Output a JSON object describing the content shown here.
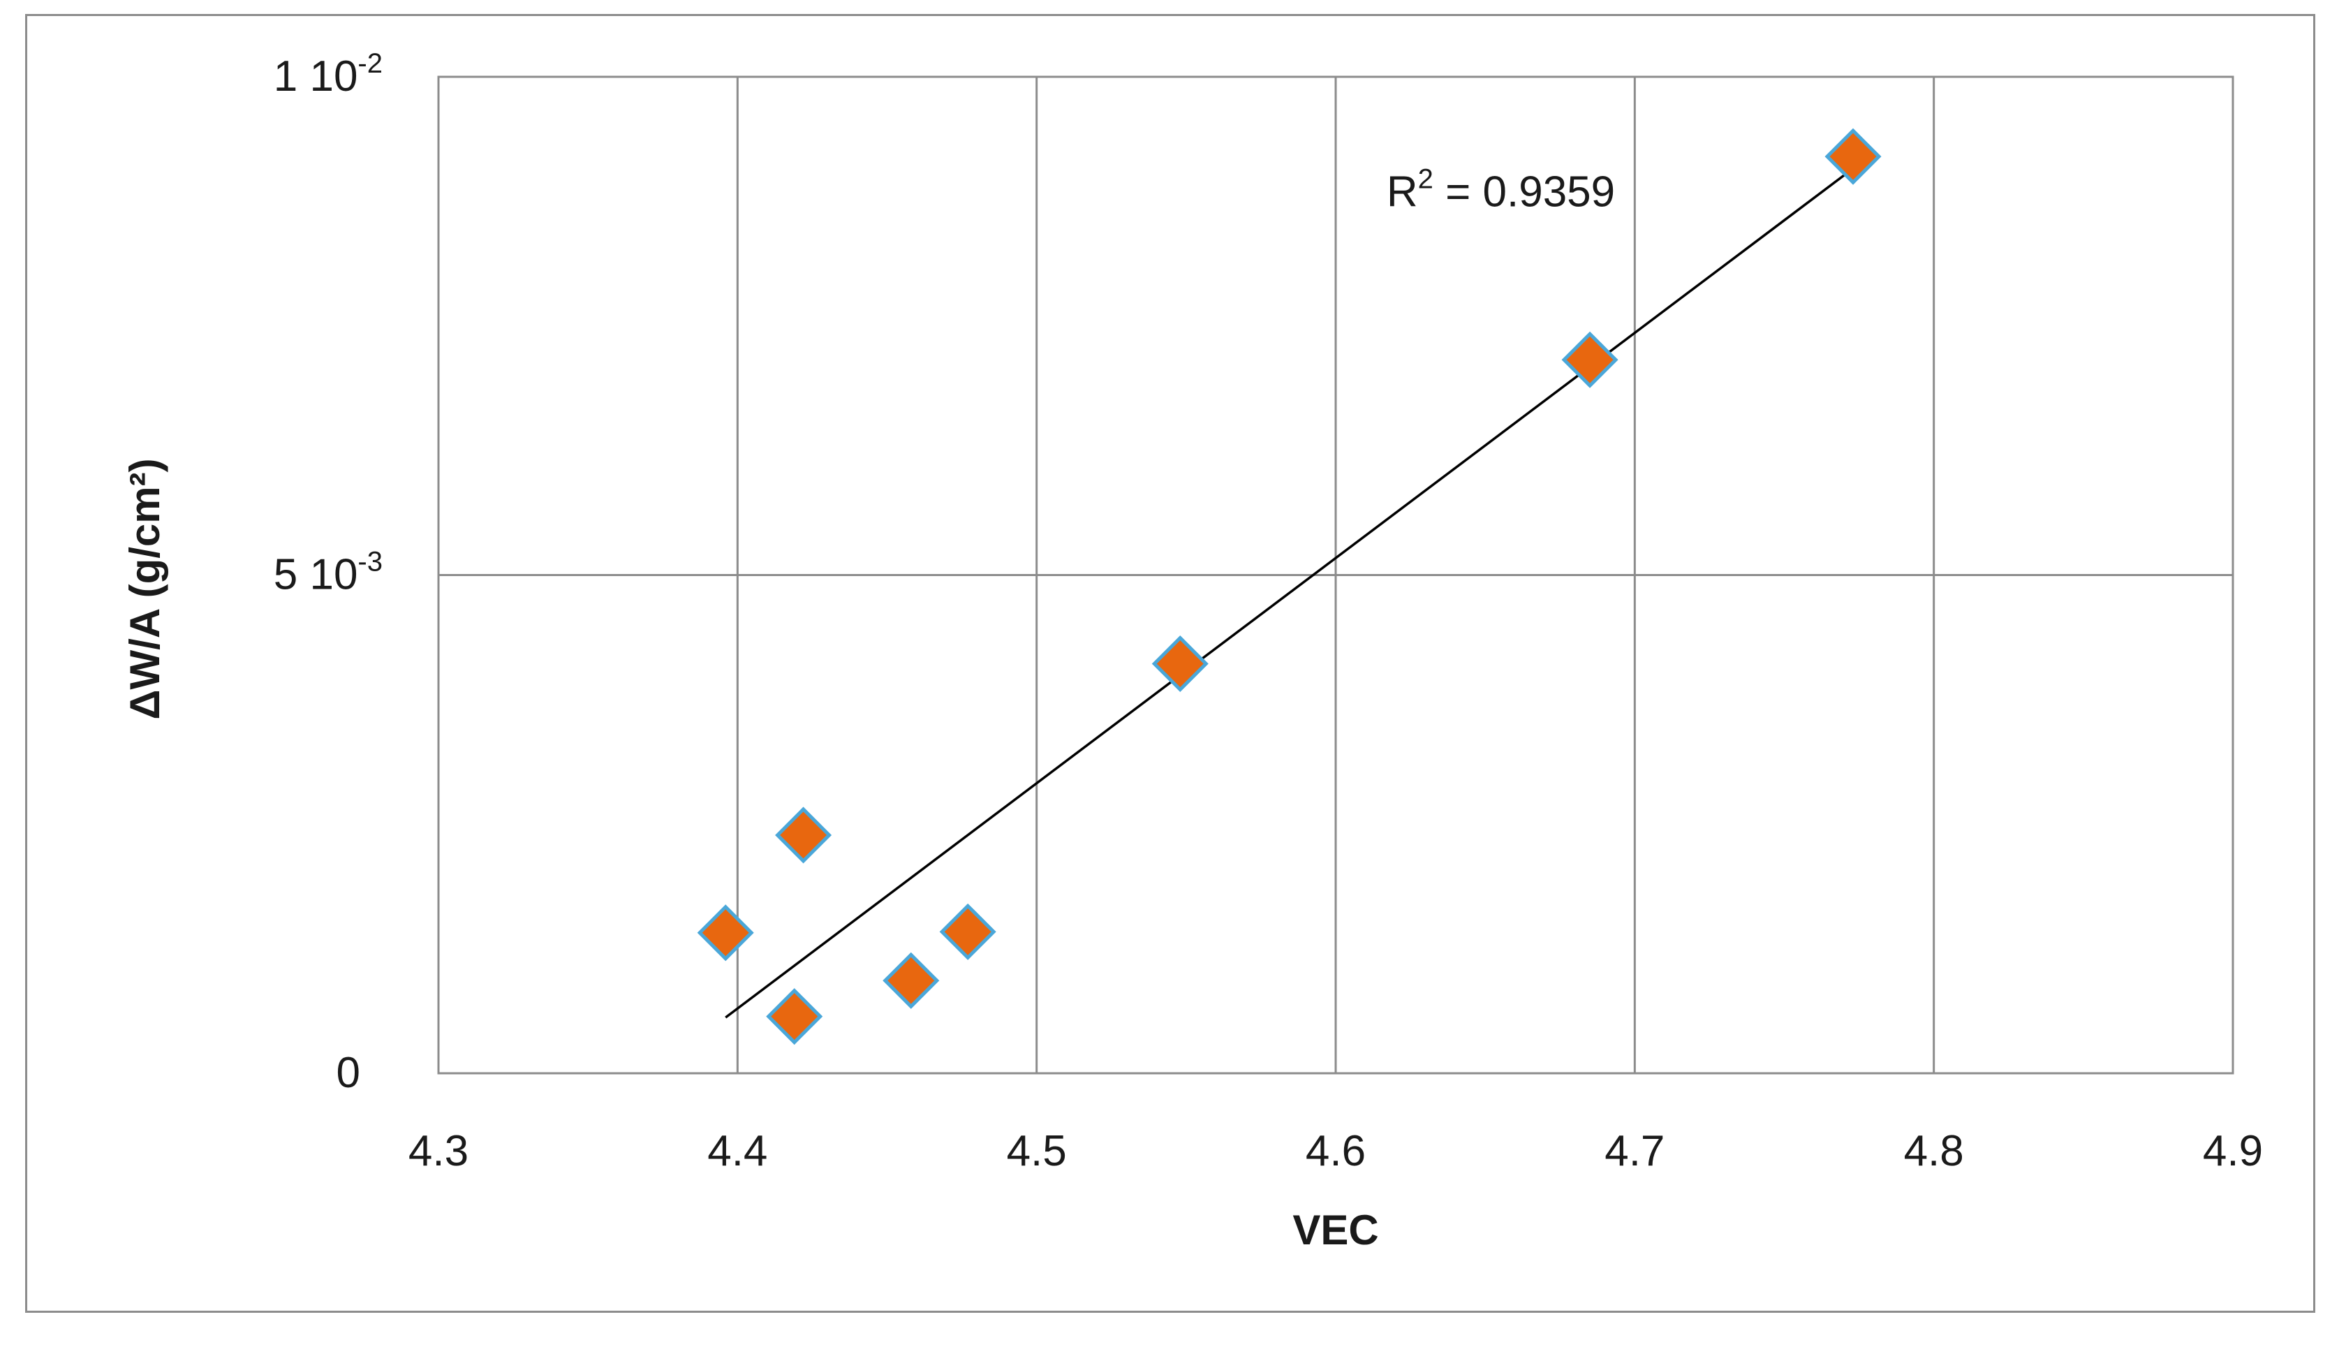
{
  "chart_data": {
    "type": "scatter",
    "title": "",
    "xlabel": "VEC",
    "ylabel": "ΔW/A (g/cm²)",
    "xlim": [
      4.3,
      4.9
    ],
    "ylim": [
      0,
      0.01
    ],
    "xticks": [
      {
        "value": 4.3,
        "label": "4.3"
      },
      {
        "value": 4.4,
        "label": "4.4"
      },
      {
        "value": 4.5,
        "label": "4.5"
      },
      {
        "value": 4.6,
        "label": "4.6"
      },
      {
        "value": 4.7,
        "label": "4.7"
      },
      {
        "value": 4.8,
        "label": "4.8"
      },
      {
        "value": 4.9,
        "label": "4.9"
      }
    ],
    "yticks": [
      {
        "value": 0,
        "mantissa": "0",
        "exponent": ""
      },
      {
        "value": 0.005,
        "mantissa": "5 10",
        "exponent": "-3"
      },
      {
        "value": 0.01,
        "mantissa": "1 10",
        "exponent": "-2"
      }
    ],
    "grid": true,
    "series": [
      {
        "marker": "diamond",
        "color": "#e8670f",
        "edge_color": "#4aa7d9",
        "points": [
          {
            "x": 4.396,
            "y": 0.00141
          },
          {
            "x": 4.419,
            "y": 0.00057
          },
          {
            "x": 4.422,
            "y": 0.00239
          },
          {
            "x": 4.458,
            "y": 0.00093
          },
          {
            "x": 4.477,
            "y": 0.00142
          },
          {
            "x": 4.548,
            "y": 0.00411
          },
          {
            "x": 4.685,
            "y": 0.00716
          },
          {
            "x": 4.773,
            "y": 0.0092
          }
        ]
      }
    ],
    "trendline": {
      "color": "#000000",
      "x": [
        4.396,
        4.773
      ],
      "y": [
        0.00056,
        0.00908
      ]
    },
    "annotation": {
      "prefix": "R",
      "superscript": "2",
      "suffix": " = 0.9359",
      "x": 4.617,
      "y": 0.0087
    }
  }
}
